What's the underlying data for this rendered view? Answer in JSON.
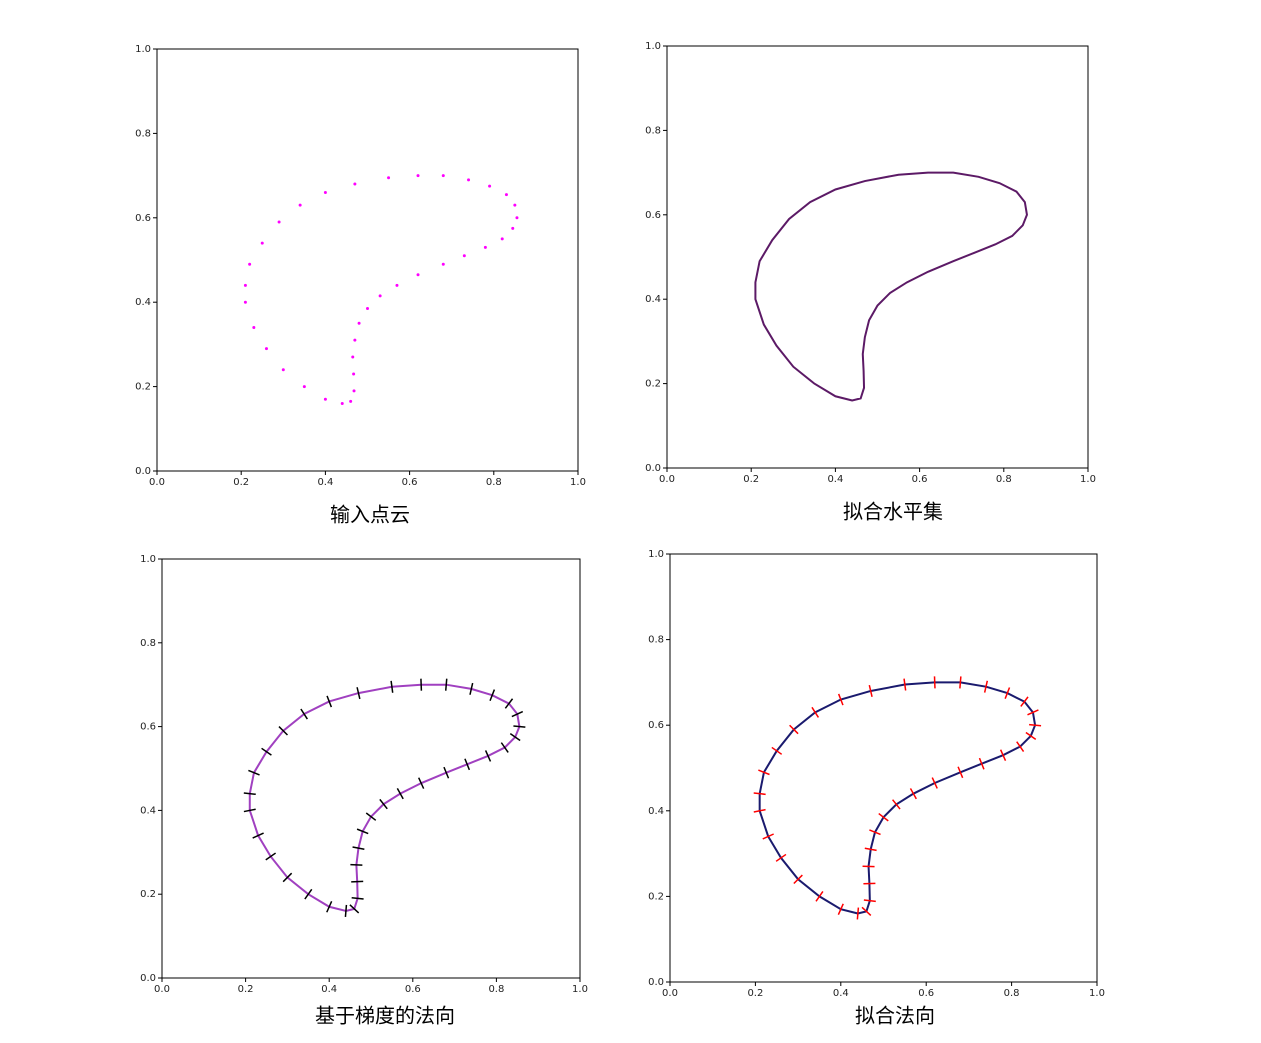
{
  "chart_data": [
    {
      "type": "scatter",
      "title": "输入点云",
      "color": "#ff00ff",
      "x": [
        0.44,
        0.4,
        0.35,
        0.3,
        0.26,
        0.23,
        0.21,
        0.21,
        0.22,
        0.25,
        0.29,
        0.34,
        0.4,
        0.47,
        0.55,
        0.62,
        0.68,
        0.74,
        0.79,
        0.83,
        0.85,
        0.855,
        0.845,
        0.82,
        0.78,
        0.73,
        0.68,
        0.62,
        0.57,
        0.53,
        0.5,
        0.48,
        0.47,
        0.465,
        0.467,
        0.468,
        0.46
      ],
      "y": [
        0.16,
        0.17,
        0.2,
        0.24,
        0.29,
        0.34,
        0.4,
        0.44,
        0.49,
        0.54,
        0.59,
        0.63,
        0.66,
        0.68,
        0.695,
        0.7,
        0.7,
        0.69,
        0.675,
        0.655,
        0.63,
        0.6,
        0.575,
        0.55,
        0.53,
        0.51,
        0.49,
        0.465,
        0.44,
        0.415,
        0.385,
        0.35,
        0.31,
        0.27,
        0.23,
        0.19,
        0.165
      ],
      "xlim": [
        0,
        1
      ],
      "ylim": [
        0,
        1
      ],
      "xticks": [
        {
          "value": 0,
          "label": "0.0"
        },
        0.2,
        0.4,
        0.6,
        0.8,
        {
          "value": 1,
          "label": "1.0"
        }
      ],
      "yticks": [
        {
          "value": 0,
          "label": "0.0"
        },
        0.2,
        0.4,
        0.6,
        0.8,
        {
          "value": 1,
          "label": "1.0"
        }
      ]
    },
    {
      "type": "line",
      "title": "拟合水平集",
      "color": "#5c1a66",
      "x": [
        0.44,
        0.4,
        0.35,
        0.3,
        0.26,
        0.23,
        0.21,
        0.21,
        0.22,
        0.25,
        0.29,
        0.34,
        0.4,
        0.47,
        0.55,
        0.62,
        0.68,
        0.74,
        0.79,
        0.83,
        0.85,
        0.855,
        0.845,
        0.82,
        0.78,
        0.73,
        0.68,
        0.62,
        0.57,
        0.53,
        0.5,
        0.48,
        0.47,
        0.465,
        0.467,
        0.468,
        0.46
      ],
      "y": [
        0.16,
        0.17,
        0.2,
        0.24,
        0.29,
        0.34,
        0.4,
        0.44,
        0.49,
        0.54,
        0.59,
        0.63,
        0.66,
        0.68,
        0.695,
        0.7,
        0.7,
        0.69,
        0.675,
        0.655,
        0.63,
        0.6,
        0.575,
        0.55,
        0.53,
        0.51,
        0.49,
        0.465,
        0.44,
        0.415,
        0.385,
        0.35,
        0.31,
        0.27,
        0.23,
        0.19,
        0.165
      ],
      "xlim": [
        0,
        1
      ],
      "ylim": [
        0,
        1
      ],
      "xticks": [
        {
          "value": 0,
          "label": "0.0"
        },
        0.2,
        0.4,
        0.6,
        0.8,
        {
          "value": 1,
          "label": "1.0"
        }
      ],
      "yticks": [
        {
          "value": 0,
          "label": "0.0"
        },
        0.2,
        0.4,
        0.6,
        0.8,
        {
          "value": 1,
          "label": "1.0"
        }
      ]
    },
    {
      "type": "normals",
      "title": "基于梯度的法向",
      "color": "#a040c0",
      "normal_color": "#000000",
      "x": [
        0.44,
        0.4,
        0.35,
        0.3,
        0.26,
        0.23,
        0.21,
        0.21,
        0.22,
        0.25,
        0.29,
        0.34,
        0.4,
        0.47,
        0.55,
        0.62,
        0.68,
        0.74,
        0.79,
        0.83,
        0.85,
        0.855,
        0.845,
        0.82,
        0.78,
        0.73,
        0.68,
        0.62,
        0.57,
        0.53,
        0.5,
        0.48,
        0.47,
        0.465,
        0.467,
        0.468,
        0.46
      ],
      "y": [
        0.16,
        0.17,
        0.2,
        0.24,
        0.29,
        0.34,
        0.4,
        0.44,
        0.49,
        0.54,
        0.59,
        0.63,
        0.66,
        0.68,
        0.695,
        0.7,
        0.7,
        0.69,
        0.675,
        0.655,
        0.63,
        0.6,
        0.575,
        0.55,
        0.53,
        0.51,
        0.49,
        0.465,
        0.44,
        0.415,
        0.385,
        0.35,
        0.31,
        0.27,
        0.23,
        0.19,
        0.165
      ],
      "xlim": [
        0,
        1
      ],
      "ylim": [
        0,
        1
      ],
      "xticks": [
        {
          "value": 0,
          "label": "0.0"
        },
        0.2,
        0.4,
        0.6,
        0.8,
        {
          "value": 1,
          "label": "1.0"
        }
      ],
      "yticks": [
        {
          "value": 0,
          "label": "0.0"
        },
        0.2,
        0.4,
        0.6,
        0.8,
        {
          "value": 1,
          "label": "1.0"
        }
      ]
    },
    {
      "type": "normals",
      "title": "拟合法向",
      "color": "#1a1a6e",
      "normal_color": "#ff0000",
      "x": [
        0.44,
        0.4,
        0.35,
        0.3,
        0.26,
        0.23,
        0.21,
        0.21,
        0.22,
        0.25,
        0.29,
        0.34,
        0.4,
        0.47,
        0.55,
        0.62,
        0.68,
        0.74,
        0.79,
        0.83,
        0.85,
        0.855,
        0.845,
        0.82,
        0.78,
        0.73,
        0.68,
        0.62,
        0.57,
        0.53,
        0.5,
        0.48,
        0.47,
        0.465,
        0.467,
        0.468,
        0.46
      ],
      "y": [
        0.16,
        0.17,
        0.2,
        0.24,
        0.29,
        0.34,
        0.4,
        0.44,
        0.49,
        0.54,
        0.59,
        0.63,
        0.66,
        0.68,
        0.695,
        0.7,
        0.7,
        0.69,
        0.675,
        0.655,
        0.63,
        0.6,
        0.575,
        0.55,
        0.53,
        0.51,
        0.49,
        0.465,
        0.44,
        0.415,
        0.385,
        0.35,
        0.31,
        0.27,
        0.23,
        0.19,
        0.165
      ],
      "xlim": [
        0,
        1
      ],
      "ylim": [
        0,
        1
      ],
      "xticks": [
        {
          "value": 0,
          "label": "0.0"
        },
        0.2,
        0.4,
        0.6,
        0.8,
        {
          "value": 1,
          "label": "1.0"
        }
      ],
      "yticks": [
        {
          "value": 0,
          "label": "0.0"
        },
        0.2,
        0.4,
        0.6,
        0.8,
        {
          "value": 1,
          "label": "1.0"
        }
      ]
    }
  ]
}
